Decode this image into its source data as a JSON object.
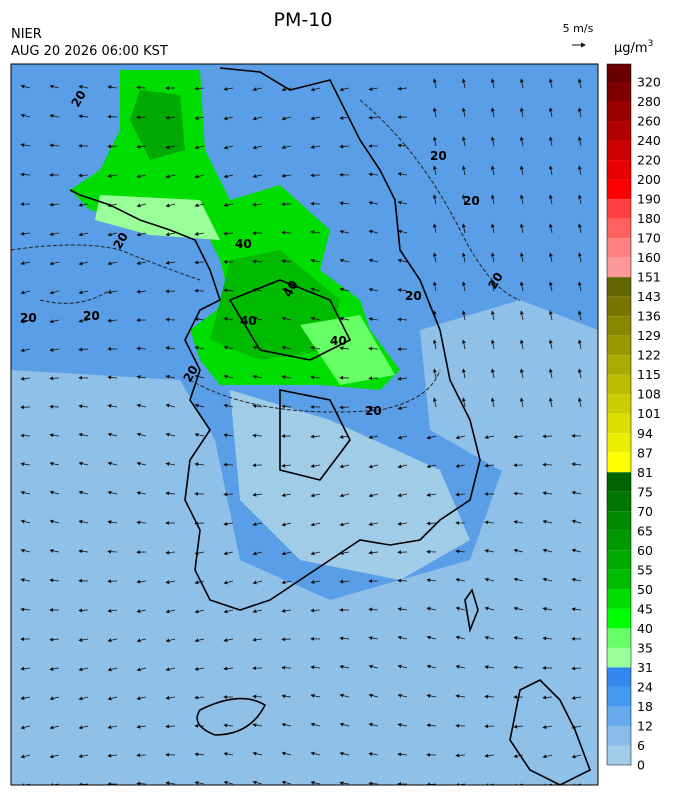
{
  "header": {
    "title": "PM-10",
    "agency": "NIER",
    "datetime": "AUG 20 2026 06:00 KST"
  },
  "wind_scale": {
    "label": "5 m/s"
  },
  "colorbar": {
    "unit": "µg/m",
    "unit_sup": "3",
    "labels": [
      "320",
      "280",
      "260",
      "240",
      "220",
      "200",
      "190",
      "180",
      "170",
      "160",
      "151",
      "143",
      "136",
      "129",
      "122",
      "115",
      "108",
      "101",
      "94",
      "87",
      "81",
      "75",
      "70",
      "65",
      "60",
      "55",
      "50",
      "45",
      "40",
      "35",
      "31",
      "24",
      "18",
      "12",
      "6",
      "0"
    ],
    "colors": [
      "#6b0000",
      "#800000",
      "#990000",
      "#b00000",
      "#cc0000",
      "#e60000",
      "#ff0000",
      "#ff4040",
      "#ff6060",
      "#ff8080",
      "#ff9999",
      "#666600",
      "#777700",
      "#888800",
      "#999900",
      "#aaaa00",
      "#bbbb00",
      "#cccc00",
      "#dddd00",
      "#eeee00",
      "#ffff00",
      "#006600",
      "#007700",
      "#008800",
      "#009900",
      "#00aa00",
      "#00bb00",
      "#00dd00",
      "#00ff00",
      "#66ff66",
      "#99ff99",
      "#3388ee",
      "#4499ee",
      "#66aaee",
      "#88bbe8",
      "#a0cce8"
    ]
  },
  "contour_labels": [
    "20",
    "20",
    "20",
    "20",
    "20",
    "20",
    "20",
    "20",
    "40",
    "40",
    "40",
    "40",
    "20",
    "20"
  ]
}
